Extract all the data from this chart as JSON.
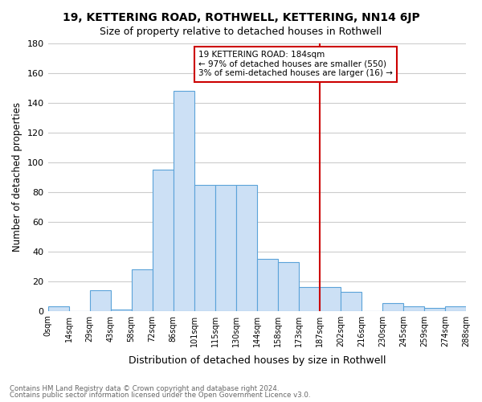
{
  "title": "19, KETTERING ROAD, ROTHWELL, KETTERING, NN14 6JP",
  "subtitle": "Size of property relative to detached houses in Rothwell",
  "xlabel": "Distribution of detached houses by size in Rothwell",
  "ylabel": "Number of detached properties",
  "bar_color": "#cce0f5",
  "bar_edge_color": "#5ba3d9",
  "bar_heights": [
    3,
    0,
    14,
    1,
    28,
    95,
    148,
    85,
    85,
    85,
    35,
    33,
    16,
    16,
    13,
    0,
    5,
    3,
    2,
    3
  ],
  "x_tick_labels": [
    "0sqm",
    "14sqm",
    "29sqm",
    "43sqm",
    "58sqm",
    "72sqm",
    "86sqm",
    "101sqm",
    "115sqm",
    "130sqm",
    "144sqm",
    "158sqm",
    "173sqm",
    "187sqm",
    "202sqm",
    "216sqm",
    "230sqm",
    "245sqm",
    "259sqm",
    "274sqm",
    "288sqm"
  ],
  "vline_x": 13,
  "vline_color": "#cc0000",
  "ylim": [
    0,
    180
  ],
  "yticks": [
    0,
    20,
    40,
    60,
    80,
    100,
    120,
    140,
    160,
    180
  ],
  "annotation_title": "19 KETTERING ROAD: 184sqm",
  "annotation_line1": "← 97% of detached houses are smaller (550)",
  "annotation_line2": "3% of semi-detached houses are larger (16) →",
  "footer_line1": "Contains HM Land Registry data © Crown copyright and database right 2024.",
  "footer_line2": "Contains public sector information licensed under the Open Government Licence v3.0.",
  "background_color": "#ffffff",
  "grid_color": "#cccccc"
}
